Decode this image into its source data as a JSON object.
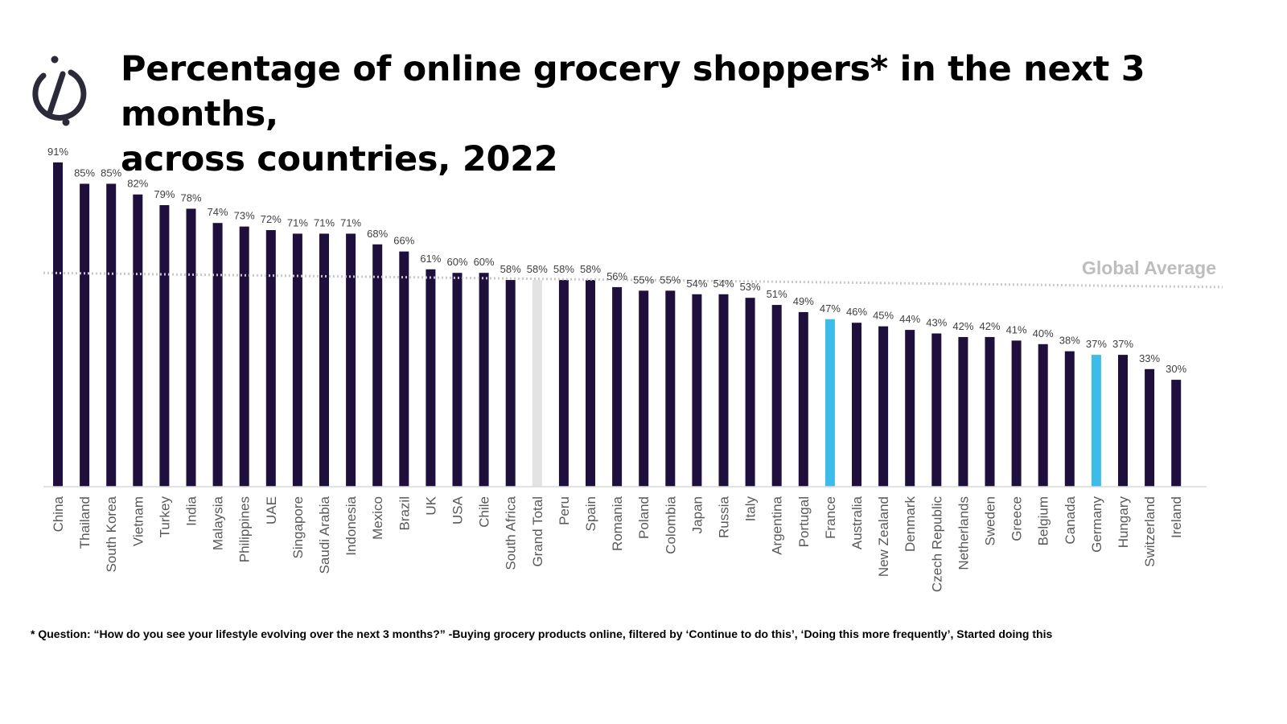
{
  "title_line1": "Percentage of online grocery shoppers* in the next 3 months,",
  "title_line2": "across countries, 2022",
  "footnote": "* Question: “How do you see your lifestyle evolving over the next 3 months?”  -Buying grocery products  online, filtered by ‘Continue  to do this’, ‘Doing this more frequently’, Started doing this",
  "logo": {
    "icon": "brand-logo-icon",
    "color": "#2a2a38"
  },
  "colors": {
    "default_bar": "#1e0f3c",
    "highlight_bar": "#3dbbe9",
    "total_bar": "#e3e3e3",
    "average_line": "#c8c8c8",
    "average_label": "#bdbdbd"
  },
  "chart_data": {
    "type": "bar",
    "categories": [
      "China",
      "Thailand",
      "South Korea",
      "Vietnam",
      "Turkey",
      "India",
      "Malaysia",
      "Philippines",
      "UAE",
      "Singapore",
      "Saudi Arabia",
      "Indonesia",
      "Mexico",
      "Brazil",
      "UK",
      "USA",
      "Chile",
      "South Africa",
      "Grand Total",
      "Peru",
      "Spain",
      "Romania",
      "Poland",
      "Colombia",
      "Japan",
      "Russia",
      "Italy",
      "Argentina",
      "Portugal",
      "France",
      "Australia",
      "New Zealand",
      "Denmark",
      "Czech Republic",
      "Netherlands",
      "Sweden",
      "Greece",
      "Belgium",
      "Canada",
      "Germany",
      "Hungary",
      "Switzerland",
      "Ireland"
    ],
    "values": [
      91,
      85,
      85,
      82,
      79,
      78,
      74,
      73,
      72,
      71,
      71,
      71,
      68,
      66,
      61,
      60,
      60,
      58,
      58,
      58,
      58,
      56,
      55,
      55,
      54,
      54,
      53,
      51,
      49,
      47,
      46,
      45,
      44,
      43,
      42,
      42,
      41,
      40,
      38,
      37,
      37,
      33,
      30
    ],
    "labels": [
      "91%",
      "85%",
      "85%",
      "82%",
      "79%",
      "78%",
      "74%",
      "73%",
      "72%",
      "71%",
      "71%",
      "71%",
      "68%",
      "66%",
      "61%",
      "60%",
      "60%",
      "58%",
      "58%",
      "58%",
      "58%",
      "56%",
      "55%",
      "55%",
      "54%",
      "54%",
      "53%",
      "51%",
      "49%",
      "47%",
      "46%",
      "45%",
      "44%",
      "43%",
      "42%",
      "42%",
      "41%",
      "40%",
      "38%",
      "37%",
      "37%",
      "33%",
      "30%"
    ],
    "highlight": [
      "France",
      "Germany"
    ],
    "total_category": "Grand Total",
    "reference_line": {
      "label": "Global Average",
      "start_value": 60,
      "end_value": 56
    },
    "ylim": [
      0,
      100
    ],
    "xlabel": "",
    "ylabel": "",
    "grid": false,
    "legend": "none"
  }
}
